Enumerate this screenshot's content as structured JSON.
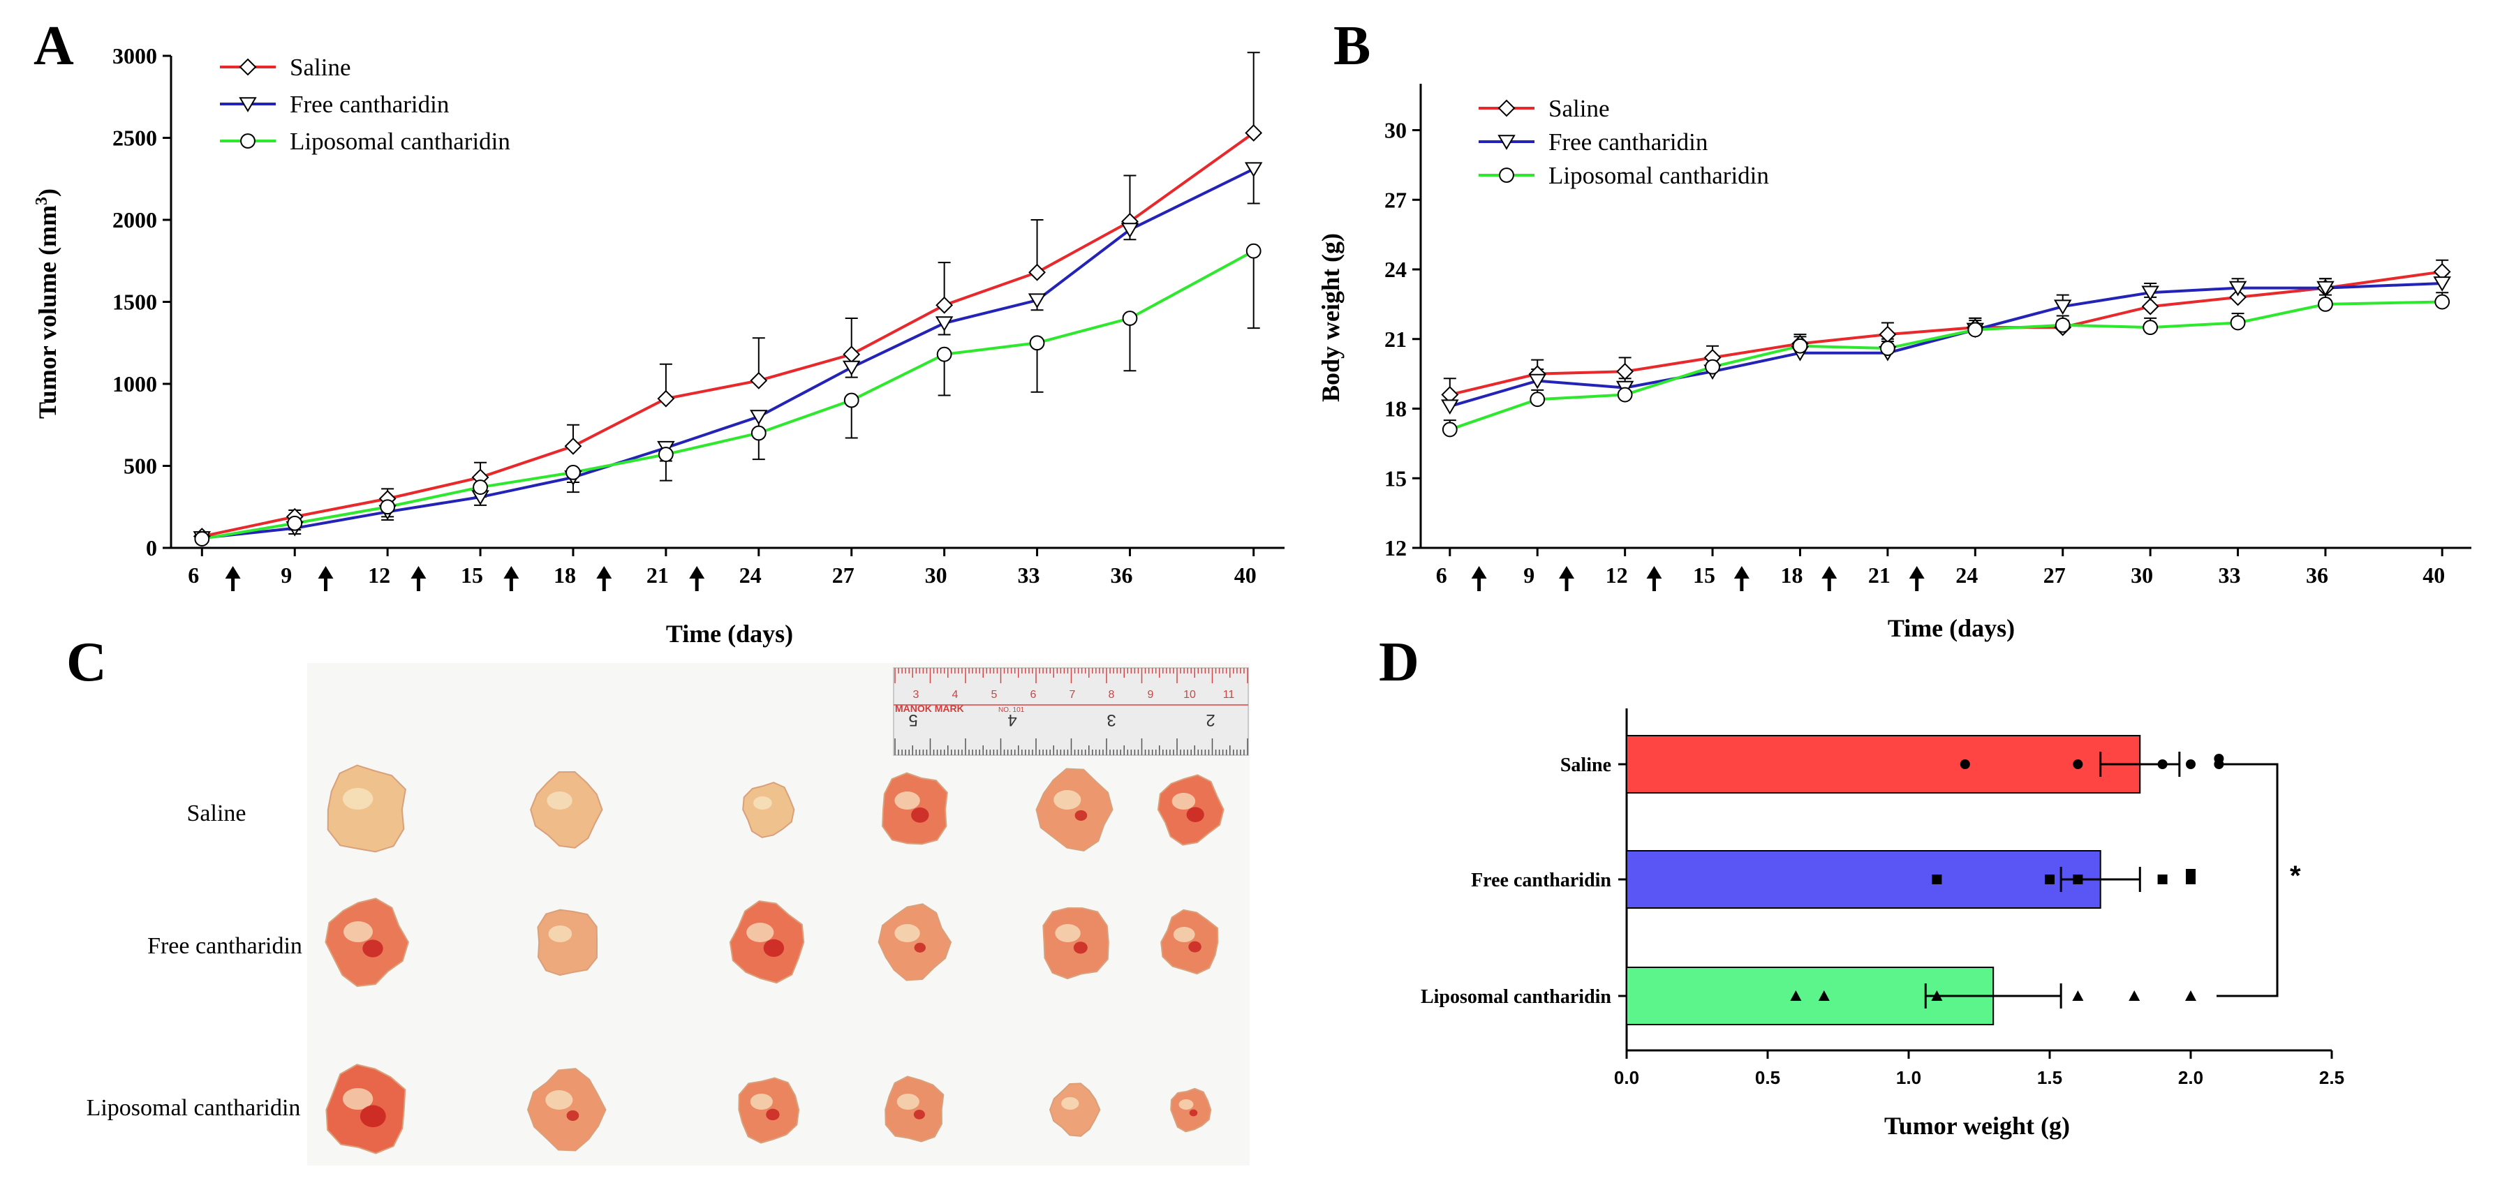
{
  "panels": {
    "a_letter": "A",
    "b_letter": "B",
    "c_letter": "C",
    "d_letter": "D"
  },
  "chart_data": [
    {
      "id": "A",
      "type": "line",
      "title": "",
      "xlabel": "Time (days)",
      "ylabel": "Tumor volume (mm3)",
      "ylabel_main": "Tumor volume (mm",
      "ylabel_sup": "3",
      "ylabel_end": ")",
      "x": [
        6,
        9,
        12,
        15,
        18,
        21,
        24,
        27,
        30,
        33,
        36,
        40
      ],
      "ylim": [
        0,
        3000
      ],
      "yticks": [
        0,
        500,
        1000,
        1500,
        2000,
        2500,
        3000
      ],
      "dosing_days": [
        7,
        10,
        13,
        16,
        19,
        22
      ],
      "legend": "top-left",
      "series": [
        {
          "name": "Saline",
          "color": "#e8282a",
          "marker": "diamond",
          "values": [
            70,
            190,
            300,
            430,
            620,
            910,
            1020,
            1180,
            1480,
            1680,
            1990,
            2530
          ],
          "err": [
            20,
            40,
            60,
            90,
            130,
            210,
            260,
            220,
            260,
            320,
            280,
            490
          ],
          "err_dir": "up"
        },
        {
          "name": "Free cantharidin",
          "color": "#2323b8",
          "marker": "triangle-down",
          "values": [
            60,
            120,
            220,
            310,
            430,
            610,
            800,
            1100,
            1370,
            1510,
            1940,
            2310
          ],
          "err": [
            20,
            35,
            50,
            50,
            90,
            80,
            80,
            60,
            70,
            60,
            60,
            210
          ],
          "err_dir": "down"
        },
        {
          "name": "Liposomal cantharidin",
          "color": "#2ee82e",
          "marker": "circle",
          "values": [
            55,
            150,
            250,
            370,
            460,
            570,
            700,
            900,
            1180,
            1250,
            1400,
            1810
          ],
          "err": [
            20,
            40,
            60,
            60,
            60,
            160,
            160,
            230,
            250,
            300,
            320,
            470
          ],
          "err_dir": "down"
        }
      ]
    },
    {
      "id": "B",
      "type": "line",
      "title": "",
      "xlabel": "Time (days)",
      "ylabel": "Body weight (g)",
      "x": [
        6,
        9,
        12,
        15,
        18,
        21,
        24,
        27,
        30,
        33,
        36,
        40
      ],
      "ylim": [
        12,
        32
      ],
      "yticks": [
        12,
        15,
        18,
        21,
        24,
        27,
        30
      ],
      "dosing_days": [
        7,
        10,
        13,
        16,
        19,
        22
      ],
      "legend": "top-left",
      "series": [
        {
          "name": "Saline",
          "color": "#e8282a",
          "marker": "diamond",
          "values": [
            18.6,
            19.5,
            19.6,
            20.2,
            20.8,
            21.2,
            21.5,
            21.5,
            22.4,
            22.8,
            23.2,
            23.9
          ],
          "err": [
            0.7,
            0.6,
            0.6,
            0.5,
            0.4,
            0.5,
            0.4,
            0.3,
            0.4,
            0.5,
            0.4,
            0.5
          ],
          "err_dir": "up"
        },
        {
          "name": "Free cantharidin",
          "color": "#2323b8",
          "marker": "triangle-down",
          "values": [
            18.1,
            19.2,
            18.9,
            19.6,
            20.4,
            20.4,
            21.4,
            22.4,
            23.0,
            23.2,
            23.2,
            23.4
          ],
          "err": [
            0.5,
            0.5,
            0.4,
            0.5,
            0.4,
            0.5,
            0.5,
            0.5,
            0.4,
            0.4,
            0.4,
            0.4
          ],
          "err_dir": "up"
        },
        {
          "name": "Liposomal cantharidin",
          "color": "#2ee82e",
          "marker": "circle",
          "values": [
            17.1,
            18.4,
            18.6,
            19.8,
            20.7,
            20.6,
            21.4,
            21.6,
            21.5,
            21.7,
            22.5,
            22.6
          ],
          "err": [
            0.4,
            0.4,
            0.4,
            0.4,
            0.4,
            0.4,
            0.4,
            0.4,
            0.4,
            0.4,
            0.4,
            0.4
          ],
          "err_dir": "up"
        }
      ]
    },
    {
      "id": "D",
      "type": "bar",
      "orientation": "horizontal",
      "title": "",
      "xlabel": "Tumor weight (g)",
      "ylabel": "",
      "xlim": [
        0,
        2.5
      ],
      "xticks": [
        "0.0",
        "0.5",
        "1.0",
        "1.5",
        "2.0",
        "2.5"
      ],
      "categories": [
        "Saline",
        "Free cantharidin",
        "Liposomal cantharidin"
      ],
      "values": [
        1.82,
        1.68,
        1.3
      ],
      "sem": [
        0.14,
        0.14,
        0.24
      ],
      "colors": [
        "#ff4444",
        "#5a55f5",
        "#5cf58c"
      ],
      "points": [
        [
          1.2,
          1.6,
          1.9,
          2.0,
          2.1,
          2.1
        ],
        [
          1.1,
          1.5,
          1.6,
          1.9,
          2.0,
          2.0
        ],
        [
          0.6,
          0.7,
          1.1,
          1.6,
          1.8,
          2.0
        ]
      ],
      "point_markers": [
        "circle",
        "square",
        "triangle"
      ],
      "significance": "*"
    }
  ],
  "photo": {
    "row_labels": [
      "Saline",
      "Free cantharidin",
      "Liposomal cantharidin"
    ],
    "ruler": {
      "top_numbers": [
        "3",
        "4",
        "5",
        "6",
        "7",
        "8",
        "9",
        "10",
        "11"
      ],
      "brand": "MANOK MARK",
      "small": "NO. 101",
      "bottom_numbers": [
        "5",
        "4",
        "3",
        "2"
      ]
    }
  }
}
